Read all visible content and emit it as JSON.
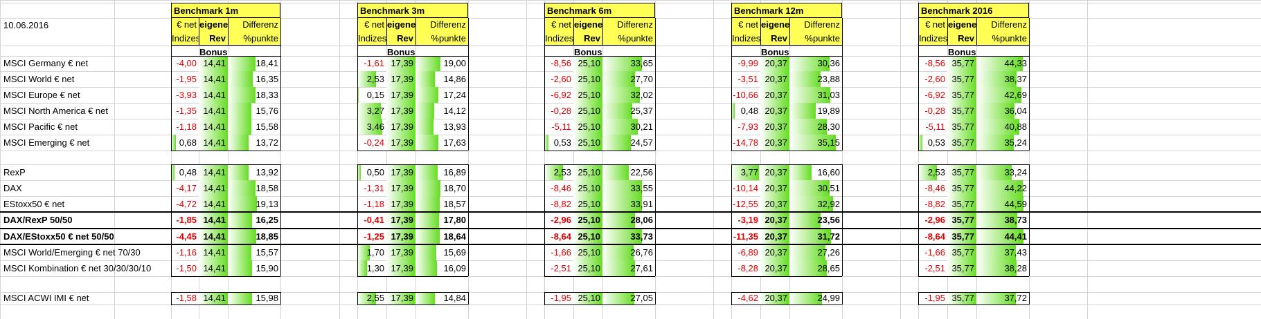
{
  "date": "10.06.2016",
  "blocks": [
    {
      "title": "Benchmark 1m",
      "h1": [
        "€ net",
        "Indizes"
      ],
      "h2": [
        "eigene",
        "Rev Bonus"
      ],
      "h3": [
        "Differenz",
        "%punkte"
      ]
    },
    {
      "title": "Benchmark 3m",
      "h1": [
        "€ net",
        "Indizes"
      ],
      "h2": [
        "eigene",
        "Rev Bonus"
      ],
      "h3": [
        "Differenz",
        "%punkte"
      ]
    },
    {
      "title": "Benchmark 6m",
      "h1": [
        "€ net",
        "Indizes"
      ],
      "h2": [
        "eigene",
        "Rev Bonus"
      ],
      "h3": [
        "Differenz",
        "%punkte"
      ]
    },
    {
      "title": "Benchmark 12m",
      "h1": [
        "€ net",
        "Indizes"
      ],
      "h2": [
        "eigene",
        "Rev Bonus"
      ],
      "h3": [
        "Differenz",
        "%punkte"
      ]
    },
    {
      "title": "Benchmark 2016",
      "h1": [
        "€ net",
        "Indizes"
      ],
      "h2": [
        "eigene",
        "Rev Bonus"
      ],
      "h3": [
        "Differenz",
        "%punkte"
      ]
    }
  ],
  "rows": [
    {
      "label": "MSCI Germany € net",
      "values": [
        [
          "-4,00",
          "14,41",
          "18,41"
        ],
        [
          "-1,61",
          "17,39",
          "19,00"
        ],
        [
          "-8,56",
          "25,10",
          "33,65"
        ],
        [
          "-9,99",
          "20,37",
          "30,36"
        ],
        [
          "-8,56",
          "35,77",
          "44,33"
        ]
      ]
    },
    {
      "label": "MSCI World € net",
      "values": [
        [
          "-1,95",
          "14,41",
          "16,35"
        ],
        [
          "2,53",
          "17,39",
          "14,86"
        ],
        [
          "-2,60",
          "25,10",
          "27,70"
        ],
        [
          "-3,51",
          "20,37",
          "23,88"
        ],
        [
          "-2,60",
          "35,77",
          "38,37"
        ]
      ]
    },
    {
      "label": "MSCI Europe € net",
      "values": [
        [
          "-3,93",
          "14,41",
          "18,33"
        ],
        [
          "0,15",
          "17,39",
          "17,24"
        ],
        [
          "-6,92",
          "25,10",
          "32,02"
        ],
        [
          "-10,66",
          "20,37",
          "31,03"
        ],
        [
          "-6,92",
          "35,77",
          "42,69"
        ]
      ]
    },
    {
      "label": "MSCI North America € net",
      "values": [
        [
          "-1,35",
          "14,41",
          "15,76"
        ],
        [
          "3,27",
          "17,39",
          "14,12"
        ],
        [
          "-0,28",
          "25,10",
          "25,37"
        ],
        [
          "0,48",
          "20,37",
          "19,89"
        ],
        [
          "-0,28",
          "35,77",
          "36,04"
        ]
      ]
    },
    {
      "label": "MSCI Pacific € net",
      "values": [
        [
          "-1,18",
          "14,41",
          "15,58"
        ],
        [
          "3,46",
          "17,39",
          "13,93"
        ],
        [
          "-5,11",
          "25,10",
          "30,21"
        ],
        [
          "-7,93",
          "20,37",
          "28,30"
        ],
        [
          "-5,11",
          "35,77",
          "40,88"
        ]
      ]
    },
    {
      "label": "MSCI Emerging € net",
      "values": [
        [
          "0,68",
          "14,41",
          "13,72"
        ],
        [
          "-0,24",
          "17,39",
          "17,63"
        ],
        [
          "0,53",
          "25,10",
          "24,57"
        ],
        [
          "-14,78",
          "20,37",
          "35,15"
        ],
        [
          "0,53",
          "35,77",
          "35,24"
        ]
      ]
    },
    {
      "label": "RexP",
      "values": [
        [
          "0,48",
          "14,41",
          "13,92"
        ],
        [
          "0,50",
          "17,39",
          "16,89"
        ],
        [
          "2,53",
          "25,10",
          "22,56"
        ],
        [
          "3,77",
          "20,37",
          "16,60"
        ],
        [
          "2,53",
          "35,77",
          "33,24"
        ]
      ]
    },
    {
      "label": "DAX",
      "values": [
        [
          "-4,17",
          "14,41",
          "18,58"
        ],
        [
          "-1,31",
          "17,39",
          "18,70"
        ],
        [
          "-8,46",
          "25,10",
          "33,55"
        ],
        [
          "-10,14",
          "20,37",
          "30,51"
        ],
        [
          "-8,46",
          "35,77",
          "44,22"
        ]
      ]
    },
    {
      "label": "EStoxx50 € net",
      "values": [
        [
          "-4,72",
          "14,41",
          "19,13"
        ],
        [
          "-1,18",
          "17,39",
          "18,57"
        ],
        [
          "-8,82",
          "25,10",
          "33,91"
        ],
        [
          "-12,55",
          "20,37",
          "32,92"
        ],
        [
          "-8,82",
          "35,77",
          "44,59"
        ]
      ]
    },
    {
      "label": "DAX/RexP 50/50",
      "bold": true,
      "values": [
        [
          "-1,85",
          "14,41",
          "16,25"
        ],
        [
          "-0,41",
          "17,39",
          "17,80"
        ],
        [
          "-2,96",
          "25,10",
          "28,06"
        ],
        [
          "-3,19",
          "20,37",
          "23,56"
        ],
        [
          "-2,96",
          "35,77",
          "38,73"
        ]
      ]
    },
    {
      "label": "DAX/EStoxx50 € net 50/50",
      "bold": true,
      "values": [
        [
          "-4,45",
          "14,41",
          "18,85"
        ],
        [
          "-1,25",
          "17,39",
          "18,64"
        ],
        [
          "-8,64",
          "25,10",
          "33,73"
        ],
        [
          "-11,35",
          "20,37",
          "31,72"
        ],
        [
          "-8,64",
          "35,77",
          "44,41"
        ]
      ]
    },
    {
      "label": "MSCI World/Emerging € net 70/30",
      "values": [
        [
          "-1,16",
          "14,41",
          "15,57"
        ],
        [
          "1,70",
          "17,39",
          "15,69"
        ],
        [
          "-1,66",
          "25,10",
          "26,76"
        ],
        [
          "-6,89",
          "20,37",
          "27,26"
        ],
        [
          "-1,66",
          "35,77",
          "37,43"
        ]
      ]
    },
    {
      "label": "MSCI Kombination € net 30/30/30/10",
      "values": [
        [
          "-1,50",
          "14,41",
          "15,90"
        ],
        [
          "1,30",
          "17,39",
          "16,09"
        ],
        [
          "-2,51",
          "25,10",
          "27,61"
        ],
        [
          "-8,28",
          "20,37",
          "28,65"
        ],
        [
          "-2,51",
          "35,77",
          "38,28"
        ]
      ]
    },
    {
      "label": "MSCI ACWI IMI € net",
      "values": [
        [
          "-1,58",
          "14,41",
          "15,98"
        ],
        [
          "2,55",
          "17,39",
          "14,84"
        ],
        [
          "-1,95",
          "25,10",
          "27,05"
        ],
        [
          "-4,62",
          "20,37",
          "24,99"
        ],
        [
          "-1,95",
          "35,77",
          "37,72"
        ]
      ]
    }
  ],
  "colors": {
    "header": "#ffff55",
    "bar": "#66dd22",
    "negative": "#e30000",
    "gridline": "#d4d4d4"
  }
}
